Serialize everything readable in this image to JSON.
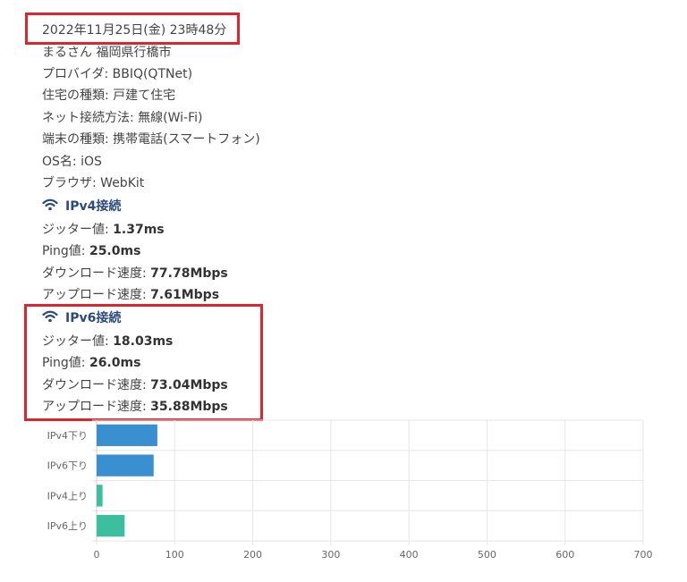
{
  "datetime": "2022年11月25日(金) 23時48分",
  "info": {
    "user": "まるさん 福岡県行橋市",
    "provider": "プロバイダ: BBIQ(QTNet)",
    "housing": "住宅の種類: 戸建て住宅",
    "connection": "ネット接続方法: 無線(Wi-Fi)",
    "device": "端末の種類: 携帯電話(スマートフォン)",
    "os": "OS名: iOS",
    "browser": "ブラウザ: WebKit"
  },
  "ipv4": {
    "title": "IPv4接続",
    "jitter_label": "ジッター値: ",
    "jitter": "1.37ms",
    "ping_label": "Ping値: ",
    "ping": "25.0ms",
    "down_label": "ダウンロード速度: ",
    "down": "77.78Mbps",
    "up_label": "アップロード速度: ",
    "up": "7.61Mbps"
  },
  "ipv6": {
    "title": "IPv6接続",
    "jitter_label": "ジッター値: ",
    "jitter": "18.03ms",
    "ping_label": "Ping値: ",
    "ping": "26.0ms",
    "down_label": "ダウンロード速度: ",
    "down": "73.04Mbps",
    "up_label": "アップロード速度: ",
    "up": "35.88Mbps"
  },
  "colors": {
    "blue": "#3a8fd0",
    "teal": "#3dbf9f",
    "highlight": "#d9262f",
    "heading": "#2c4a7c"
  },
  "icons": {
    "section": "wifi-icon"
  },
  "chart_data": {
    "type": "bar",
    "orientation": "horizontal",
    "categories": [
      "IPv4下り",
      "IPv6下り",
      "IPv4上り",
      "IPv6上り"
    ],
    "values": [
      77.78,
      73.04,
      7.61,
      35.88
    ],
    "colors": [
      "#3a8fd0",
      "#3a8fd0",
      "#3dbf9f",
      "#3dbf9f"
    ],
    "xlim": [
      0,
      700
    ],
    "xticks": [
      0,
      100,
      200,
      300,
      400,
      500,
      600,
      700
    ],
    "grid": true,
    "title": "",
    "xlabel": "",
    "ylabel": ""
  }
}
